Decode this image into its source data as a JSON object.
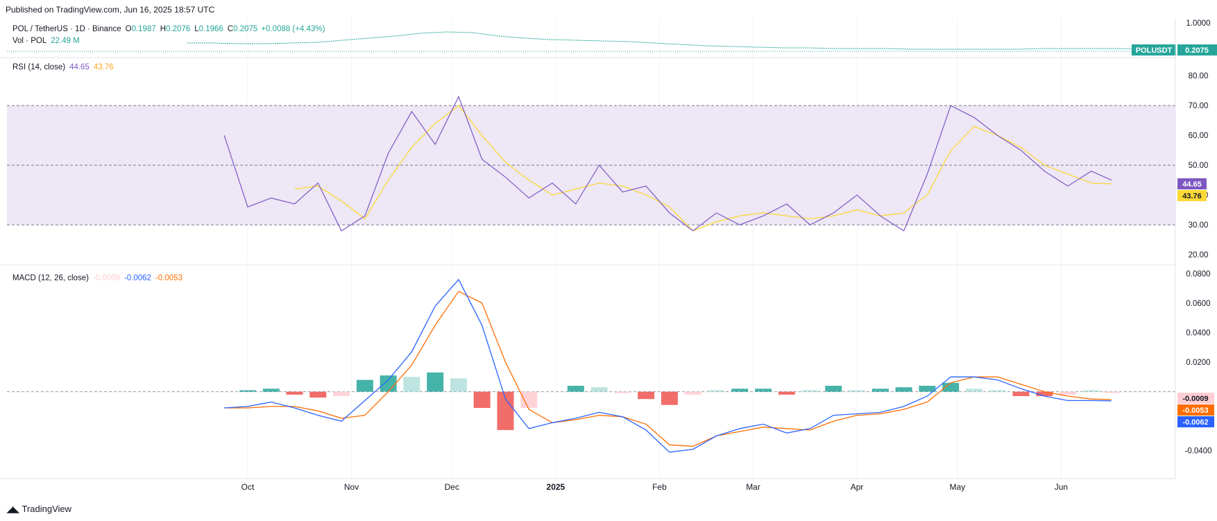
{
  "header": {
    "published": "Published on TradingView.com, Jun 16, 2025 18:57 UTC"
  },
  "footer": {
    "logo_text": "TradingView"
  },
  "colors": {
    "up": "#26a69a",
    "down": "#ef5350",
    "rsi": "#7e57c2",
    "rsi_ma": "#fdd835",
    "macd": "#2962ff",
    "signal": "#ff6d00",
    "hist_up_strong": "#26a69a",
    "hist_up_weak": "#b2dfdb",
    "hist_down_strong": "#ef5350",
    "hist_down_weak": "#ffcdd2",
    "rsi_band": "#ede7f6"
  },
  "price_pane": {
    "symbol": "POL / TetherUS · 1D · Binance",
    "o_label": "O",
    "o": "0.1987",
    "h_label": "H",
    "h": "0.2076",
    "l_label": "L",
    "l": "0.1966",
    "c_label": "C",
    "c": "0.2075",
    "change": "+0.0088 (+4.43%)",
    "vol_label": "Vol · POL",
    "vol": "22.49 M",
    "axis_tick": "1.0000",
    "price_tag_symbol": "POLUSDT",
    "price_tag_value": "0.2075"
  },
  "rsi_pane": {
    "title": "RSI (14, close)",
    "value": "44.65",
    "ma_value": "43.76",
    "ticks": [
      "80.00",
      "70.00",
      "60.00",
      "50.00",
      "40.00",
      "30.00",
      "20.00"
    ]
  },
  "macd_pane": {
    "title": "MACD (12, 26, close)",
    "hist_value": "-0.0009",
    "macd_value": "-0.0062",
    "signal_value": "-0.0053",
    "ticks": [
      "0.0800",
      "0.0600",
      "0.0400",
      "0.0200",
      "-0.0400"
    ]
  },
  "x_axis": {
    "labels": [
      "Oct",
      "Nov",
      "Dec",
      "2025",
      "Feb",
      "Mar",
      "Apr",
      "May",
      "Jun"
    ]
  },
  "chart_data": [
    {
      "type": "line",
      "title": "RSI (14, close)",
      "ylim": [
        17,
        84
      ],
      "bands": [
        30,
        50,
        70
      ],
      "x": [
        "2024-09-24",
        "2024-10-01",
        "2024-10-08",
        "2024-10-15",
        "2024-10-22",
        "2024-10-29",
        "2024-11-05",
        "2024-11-12",
        "2024-11-19",
        "2024-11-26",
        "2024-12-03",
        "2024-12-10",
        "2024-12-17",
        "2024-12-24",
        "2024-12-31",
        "2025-01-07",
        "2025-01-14",
        "2025-01-21",
        "2025-01-28",
        "2025-02-04",
        "2025-02-11",
        "2025-02-18",
        "2025-02-25",
        "2025-03-04",
        "2025-03-11",
        "2025-03-18",
        "2025-03-25",
        "2025-04-01",
        "2025-04-08",
        "2025-04-15",
        "2025-04-22",
        "2025-04-29",
        "2025-05-06",
        "2025-05-13",
        "2025-05-20",
        "2025-05-27",
        "2025-06-03",
        "2025-06-10",
        "2025-06-16"
      ],
      "series": [
        {
          "values": [
            60,
            36,
            39,
            37,
            44,
            28,
            33,
            54,
            68,
            57,
            73,
            52,
            46,
            39,
            44,
            37,
            50,
            41,
            43,
            34,
            28,
            34,
            30,
            33,
            37,
            30,
            34,
            40,
            33,
            28,
            47,
            70,
            66,
            60,
            55,
            48,
            43,
            48,
            45
          ]
        },
        {
          "values": [
            null,
            null,
            null,
            42,
            43,
            38,
            32,
            45,
            56,
            64,
            70,
            60,
            51,
            45,
            40,
            42,
            44,
            43,
            40,
            36,
            28,
            31,
            33,
            34,
            33,
            32,
            33,
            35,
            33,
            34,
            40,
            55,
            63,
            60,
            56,
            50,
            47,
            44,
            43.76
          ]
        }
      ]
    },
    {
      "type": "bar",
      "title": "MACD (12, 26, close)",
      "ylim": [
        -0.058,
        0.083
      ],
      "x": [
        "2024-09-24",
        "2024-10-01",
        "2024-10-08",
        "2024-10-15",
        "2024-10-22",
        "2024-10-29",
        "2024-11-05",
        "2024-11-12",
        "2024-11-19",
        "2024-11-26",
        "2024-12-03",
        "2024-12-10",
        "2024-12-17",
        "2024-12-24",
        "2024-12-31",
        "2025-01-07",
        "2025-01-14",
        "2025-01-21",
        "2025-01-28",
        "2025-02-04",
        "2025-02-11",
        "2025-02-18",
        "2025-02-25",
        "2025-03-04",
        "2025-03-11",
        "2025-03-18",
        "2025-03-25",
        "2025-04-01",
        "2025-04-08",
        "2025-04-15",
        "2025-04-22",
        "2025-04-29",
        "2025-05-06",
        "2025-05-13",
        "2025-05-20",
        "2025-05-27",
        "2025-06-03",
        "2025-06-10",
        "2025-06-16"
      ],
      "series": [
        {
          "type": "line",
          "values": [
            -0.011,
            -0.01,
            -0.007,
            -0.011,
            -0.016,
            -0.02,
            -0.006,
            0.008,
            0.027,
            0.058,
            0.076,
            0.045,
            -0.005,
            -0.025,
            -0.021,
            -0.018,
            -0.014,
            -0.017,
            -0.026,
            -0.041,
            -0.039,
            -0.03,
            -0.025,
            -0.022,
            -0.028,
            -0.025,
            -0.016,
            -0.015,
            -0.014,
            -0.01,
            -0.003,
            0.01,
            0.01,
            0.008,
            0.002,
            -0.003,
            -0.006,
            -0.006,
            -0.0062
          ]
        },
        {
          "type": "line",
          "values": [
            -0.011,
            -0.011,
            -0.01,
            -0.01,
            -0.013,
            -0.018,
            -0.016,
            0.0,
            0.018,
            0.045,
            0.068,
            0.06,
            0.02,
            -0.012,
            -0.021,
            -0.019,
            -0.016,
            -0.017,
            -0.022,
            -0.036,
            -0.037,
            -0.03,
            -0.027,
            -0.024,
            -0.025,
            -0.026,
            -0.02,
            -0.016,
            -0.015,
            -0.012,
            -0.007,
            0.006,
            0.01,
            0.01,
            0.005,
            0.0,
            -0.003,
            -0.005,
            -0.0053
          ]
        },
        {
          "type": "bar",
          "values": [
            0,
            0.001,
            0.002,
            -0.002,
            -0.004,
            -0.003,
            0.008,
            0.011,
            0.01,
            0.013,
            0.009,
            -0.011,
            -0.026,
            -0.011,
            0.0,
            0.004,
            0.003,
            -0.001,
            -0.005,
            -0.009,
            -0.002,
            0.001,
            0.002,
            0.002,
            -0.002,
            0.001,
            0.004,
            0.001,
            0.002,
            0.003,
            0.004,
            0.006,
            0.002,
            0.001,
            -0.003,
            -0.003,
            -0.002,
            0.001,
            -0.0009
          ]
        }
      ]
    }
  ]
}
